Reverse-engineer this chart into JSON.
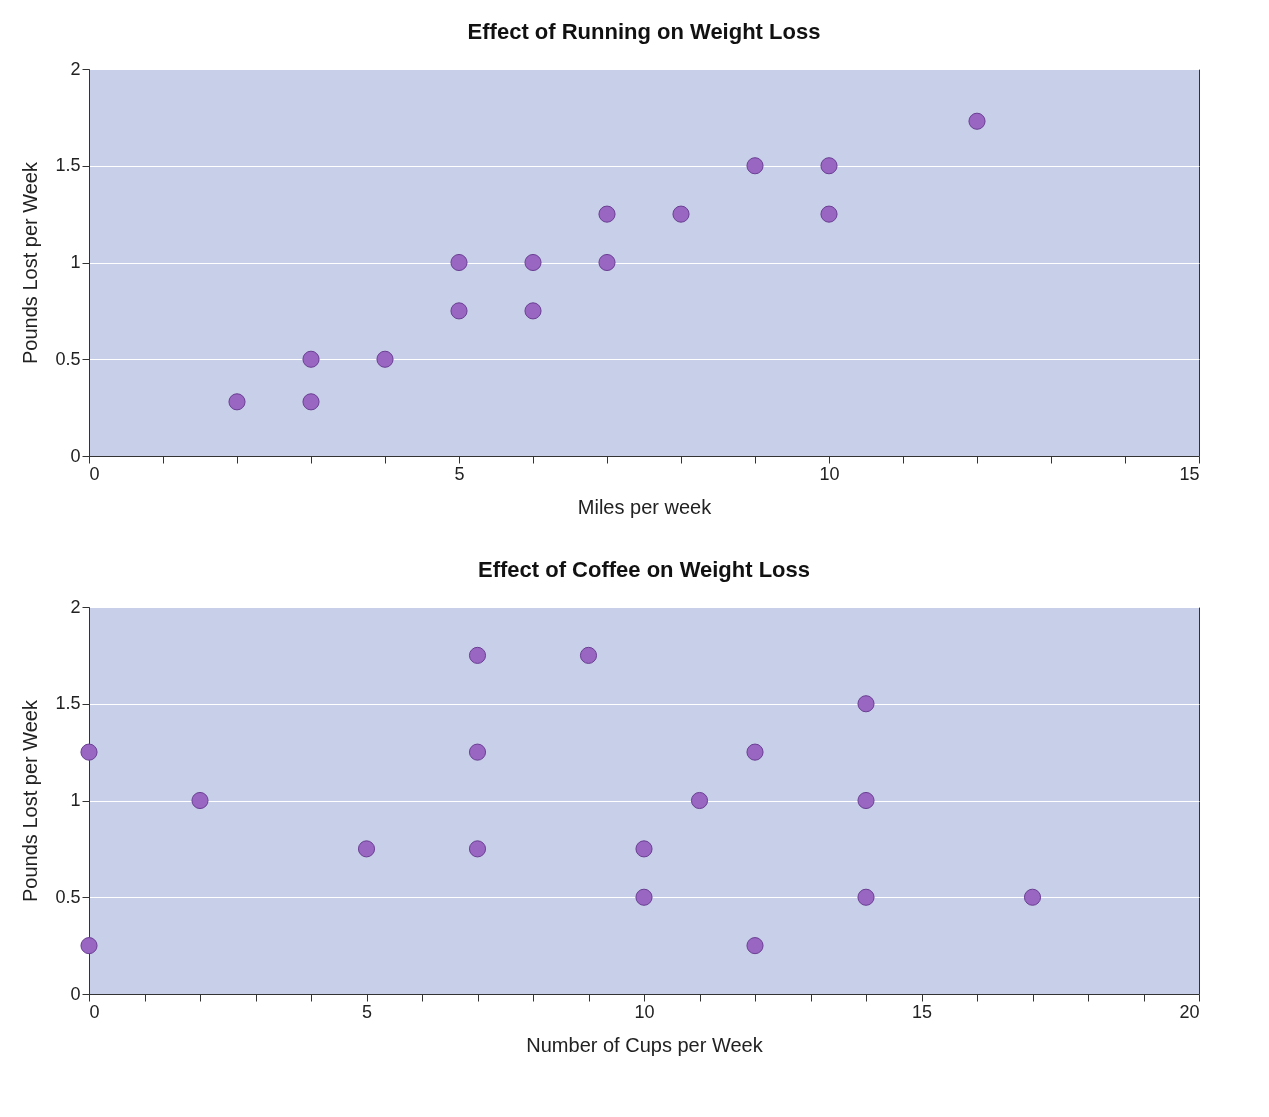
{
  "chart_data": [
    {
      "type": "scatter",
      "title": "Effect of Running on Weight Loss",
      "xlabel": "Miles per week",
      "ylabel": "Pounds Lost per Week",
      "x": [
        2,
        3,
        3,
        4,
        5,
        5,
        6,
        6,
        7,
        7,
        8,
        9,
        10,
        10,
        12
      ],
      "series": [
        {
          "color": "#9966c2",
          "values": [
            0.28,
            0.28,
            0.5,
            0.5,
            0.75,
            1,
            0.75,
            1,
            1,
            1.25,
            1.25,
            1.5,
            1.5,
            1.25,
            1.73
          ]
        }
      ],
      "xlim": [
        0,
        15
      ],
      "ylim": [
        0,
        2
      ],
      "xticks": [
        0,
        {
          "value": 1,
          "label": null
        },
        {
          "value": 2,
          "label": null
        },
        {
          "value": 3,
          "label": null
        },
        {
          "value": 4,
          "label": null
        },
        5,
        {
          "value": 6,
          "label": null
        },
        {
          "value": 7,
          "label": null
        },
        {
          "value": 8,
          "label": null
        },
        {
          "value": 9,
          "label": null
        },
        10,
        {
          "value": 11,
          "label": null
        },
        {
          "value": 12,
          "label": null
        },
        {
          "value": 13,
          "label": null
        },
        {
          "value": 14,
          "label": null
        },
        15
      ],
      "yticks": [
        0,
        0.5,
        1,
        1.5,
        2
      ],
      "grid": "y",
      "marker": "circle"
    },
    {
      "type": "scatter",
      "title": "Effect of Coffee on Weight Loss",
      "xlabel": "Number of Cups per Week",
      "ylabel": "Pounds Lost per Week",
      "x": [
        0,
        0,
        2,
        5,
        7,
        7,
        7,
        9,
        10,
        10,
        11,
        12,
        12,
        14,
        14,
        14,
        17
      ],
      "series": [
        {
          "color": "#9966c2",
          "values": [
            1.25,
            0.25,
            1,
            0.75,
            1.75,
            1.25,
            0.75,
            1.75,
            0.75,
            0.5,
            1,
            1.25,
            0.25,
            1.5,
            1,
            0.5,
            0.5
          ]
        }
      ],
      "xlim": [
        0,
        20
      ],
      "ylim": [
        0,
        2
      ],
      "xticks": [
        0,
        {
          "value": 1,
          "label": null
        },
        {
          "value": 2,
          "label": null
        },
        {
          "value": 3,
          "label": null
        },
        {
          "value": 4,
          "label": null
        },
        5,
        {
          "value": 6,
          "label": null
        },
        {
          "value": 7,
          "label": null
        },
        {
          "value": 8,
          "label": null
        },
        {
          "value": 9,
          "label": null
        },
        10,
        {
          "value": 11,
          "label": null
        },
        {
          "value": 12,
          "label": null
        },
        {
          "value": 13,
          "label": null
        },
        {
          "value": 14,
          "label": null
        },
        15,
        {
          "value": 16,
          "label": null
        },
        {
          "value": 17,
          "label": null
        },
        {
          "value": 18,
          "label": null
        },
        {
          "value": 19,
          "label": null
        },
        20
      ],
      "yticks": [
        0,
        0.5,
        1,
        1.5,
        2
      ],
      "grid": "y",
      "marker": "circle"
    }
  ]
}
